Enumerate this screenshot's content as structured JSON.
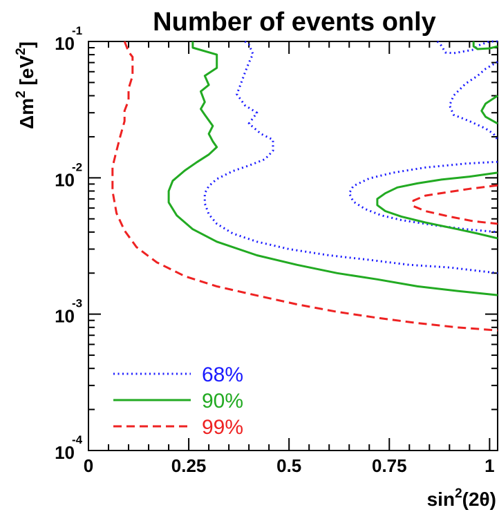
{
  "chart_data": {
    "type": "line",
    "title": "Number of events only",
    "xlabel": {
      "main": "sin",
      "sup": "2",
      "rest": "(2θ)"
    },
    "ylabel": {
      "main": "Δm",
      "sup1": "2",
      "mid": " [eV",
      "sup2": "2",
      "end": "]"
    },
    "x_scale": "linear",
    "y_scale": "log",
    "xlim": [
      0,
      1.02
    ],
    "ylim": [
      0.0001,
      0.1
    ],
    "x_ticks": [
      {
        "value": 0,
        "label": "0"
      },
      {
        "value": 0.25,
        "label": "0.25"
      },
      {
        "value": 0.5,
        "label": "0.5"
      },
      {
        "value": 0.75,
        "label": "0.75"
      },
      {
        "value": 1,
        "label": "1"
      }
    ],
    "y_ticks": [
      {
        "value": 0.1,
        "base": "10",
        "exp": "-1"
      },
      {
        "value": 0.01,
        "base": "10",
        "exp": "-2"
      },
      {
        "value": 0.001,
        "base": "10",
        "exp": "-3"
      },
      {
        "value": 0.0001,
        "base": "10",
        "exp": "-4"
      }
    ],
    "legend_position": "bottom-left",
    "series": [
      {
        "name": "68%",
        "color": "#1a1aff",
        "style": "dotted",
        "curves": [
          {
            "x": [
              0.39,
              0.4,
              0.41,
              0.4,
              0.39,
              0.38,
              0.37,
              0.39,
              0.42,
              0.4,
              0.43,
              0.46,
              0.46,
              0.44,
              0.4,
              0.36,
              0.32,
              0.3,
              0.29,
              0.29,
              0.3,
              0.32,
              0.36,
              0.42,
              0.5,
              0.6,
              0.7,
              0.8,
              0.9,
              1.02
            ],
            "y": [
              0.1,
              0.095,
              0.081,
              0.07,
              0.059,
              0.049,
              0.041,
              0.034,
              0.03,
              0.025,
              0.021,
              0.019,
              0.0158,
              0.0137,
              0.0123,
              0.0112,
              0.0098,
              0.0087,
              0.0077,
              0.0065,
              0.0054,
              0.0046,
              0.0039,
              0.0034,
              0.003,
              0.0027,
              0.0025,
              0.0023,
              0.0022,
              0.002
            ]
          },
          {
            "x": [
              1.02,
              0.94,
              0.84,
              0.76,
              0.7,
              0.66,
              0.65,
              0.66,
              0.69,
              0.73,
              0.78,
              0.86,
              0.94,
              1.02
            ],
            "y": [
              0.0131,
              0.0127,
              0.0119,
              0.0109,
              0.0099,
              0.0087,
              0.0077,
              0.0067,
              0.0059,
              0.0053,
              0.0049,
              0.0045,
              0.0042,
              0.004
            ]
          },
          {
            "x": [
              0.87,
              0.88,
              0.89,
              0.91,
              0.96,
              0.97,
              1.0,
              1.02
            ],
            "y": [
              0.1,
              0.093,
              0.083,
              0.082,
              0.087,
              0.093,
              0.1,
              0.1
            ]
          },
          {
            "x": [
              1.02,
              0.99,
              0.97,
              0.94,
              0.91,
              0.9,
              0.91,
              0.95,
              0.99,
              1.01,
              1.02
            ],
            "y": [
              0.071,
              0.063,
              0.056,
              0.049,
              0.04,
              0.034,
              0.029,
              0.026,
              0.023,
              0.021,
              0.019
            ]
          }
        ]
      },
      {
        "name": "90%",
        "color": "#22aa22",
        "style": "solid",
        "curves": [
          {
            "x": [
              0.26,
              0.26,
              0.32,
              0.32,
              0.29,
              0.3,
              0.28,
              0.29,
              0.28,
              0.29,
              0.31,
              0.3,
              0.31,
              0.32,
              0.3,
              0.27,
              0.24,
              0.21,
              0.2,
              0.2,
              0.22,
              0.26,
              0.32,
              0.42,
              0.52,
              0.62,
              0.72,
              0.82,
              0.92,
              1.02
            ],
            "y": [
              0.1,
              0.09,
              0.08,
              0.064,
              0.056,
              0.048,
              0.043,
              0.036,
              0.032,
              0.029,
              0.024,
              0.021,
              0.0185,
              0.0168,
              0.0148,
              0.013,
              0.0113,
              0.0095,
              0.008,
              0.0066,
              0.0053,
              0.0042,
              0.0034,
              0.0027,
              0.0023,
              0.002,
              0.0018,
              0.0016,
              0.00148,
              0.00138
            ]
          },
          {
            "x": [
              1.02,
              0.95,
              0.88,
              0.82,
              0.77,
              0.74,
              0.72,
              0.72,
              0.74,
              0.78,
              0.84,
              0.92,
              0.97,
              1.02
            ],
            "y": [
              0.0109,
              0.0102,
              0.0097,
              0.0091,
              0.0085,
              0.0077,
              0.007,
              0.0063,
              0.0057,
              0.0052,
              0.0047,
              0.0042,
              0.0039,
              0.0036
            ]
          },
          {
            "x": [
              0.96,
              0.96,
              0.97,
              1.0,
              1.02
            ],
            "y": [
              0.1,
              0.092,
              0.088,
              0.089,
              0.092
            ]
          },
          {
            "x": [
              1.02,
              0.99,
              0.98,
              0.99,
              1.02
            ],
            "y": [
              0.04,
              0.035,
              0.031,
              0.028,
              0.025
            ]
          }
        ]
      },
      {
        "name": "99%",
        "color": "#ee2222",
        "style": "dashed",
        "curves": [
          {
            "x": [
              0.09,
              0.1,
              0.11,
              0.11,
              0.1,
              0.1,
              0.09,
              0.09,
              0.08,
              0.07,
              0.06,
              0.06,
              0.07,
              0.09,
              0.12,
              0.17,
              0.24,
              0.32,
              0.42,
              0.52,
              0.62,
              0.72,
              0.82,
              0.92,
              1.02
            ],
            "y": [
              0.1,
              0.084,
              0.077,
              0.056,
              0.045,
              0.037,
              0.031,
              0.026,
              0.0205,
              0.0158,
              0.012,
              0.008,
              0.0055,
              0.0041,
              0.0031,
              0.0024,
              0.0019,
              0.0016,
              0.00137,
              0.00118,
              0.00104,
              0.00094,
              0.00086,
              0.0008,
              0.00076
            ]
          },
          {
            "x": [
              1.02,
              0.95,
              0.89,
              0.84,
              0.81,
              0.81,
              0.84,
              0.9,
              0.96,
              1.02
            ],
            "y": [
              0.0088,
              0.0083,
              0.0078,
              0.0074,
              0.0068,
              0.0062,
              0.0057,
              0.0052,
              0.0048,
              0.0046
            ]
          }
        ]
      }
    ]
  }
}
